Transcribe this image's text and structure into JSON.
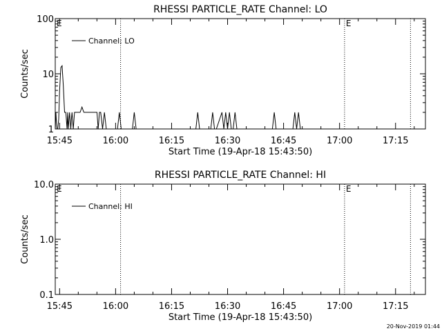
{
  "footer": {
    "timestamp": "20-Nov-2019 01:44"
  },
  "chart_data": [
    {
      "type": "line",
      "title": "RHESSI PARTICLE_RATE Channel: LO",
      "xlabel": "Start Time (19-Apr-18 15:43:50)",
      "ylabel": "Counts/sec",
      "y_scale": "log",
      "ylim": [
        1,
        100
      ],
      "y_ticks": [
        1,
        10,
        100
      ],
      "y_tick_labels": [
        "1",
        "10",
        "100"
      ],
      "xlim": [
        "15:43:50",
        "17:23:00"
      ],
      "x_ticks": [
        "15:45",
        "16:00",
        "16:15",
        "16:30",
        "16:45",
        "17:00",
        "17:15"
      ],
      "legend": {
        "position": "top-left",
        "entries": [
          "Channel: LO"
        ]
      },
      "markers": [
        {
          "time": "15:43:50",
          "label": "E",
          "line": false
        },
        {
          "time": "16:01:20",
          "label": "",
          "line": true
        },
        {
          "time": "17:01:20",
          "label": "E",
          "line": true
        },
        {
          "time": "17:19:00",
          "label": "",
          "line": true
        }
      ],
      "series": [
        {
          "name": "Channel: LO",
          "x": [
            "15:43:50",
            "15:44:00",
            "15:44:15",
            "15:44:30",
            "15:44:45",
            "15:45:00",
            "15:45:20",
            "15:45:40",
            "15:46:00",
            "15:46:20",
            "15:46:40",
            "15:47:00",
            "15:47:10",
            "15:47:20",
            "15:47:40",
            "15:48:00",
            "15:48:10",
            "15:48:20",
            "15:48:40",
            "15:49:00",
            "15:49:10",
            "15:49:20",
            "15:49:40",
            "15:50:00",
            "15:50:10",
            "15:50:30",
            "15:51:00",
            "15:51:30",
            "15:52:00",
            "15:52:20",
            "15:52:40",
            "15:53:00",
            "15:53:20",
            "15:53:40",
            "15:54:00",
            "15:54:20",
            "15:54:40",
            "15:55:00",
            "15:55:20",
            "15:55:40",
            "15:56:00",
            "15:56:30",
            "15:57:00",
            "15:57:30",
            "15:58:00",
            "15:58:30",
            "15:59:00",
            "15:59:30",
            "16:00:00",
            "16:00:30",
            "16:01:00",
            "16:01:30",
            "16:02:00",
            "16:04:00",
            "16:04:30",
            "16:05:00",
            "16:05:30",
            "16:06:00",
            "16:20:00",
            "16:21:30",
            "16:22:00",
            "16:22:30",
            "16:23:00",
            "16:25:00",
            "16:25:30",
            "16:26:00",
            "16:26:30",
            "16:27:00",
            "16:28:30",
            "16:29:00",
            "16:29:30",
            "16:30:00",
            "16:30:30",
            "16:31:00",
            "16:31:30",
            "16:32:00",
            "16:32:30",
            "16:33:00",
            "16:41:30",
            "16:42:00",
            "16:42:30",
            "16:43:00",
            "16:47:00",
            "16:47:30",
            "16:48:00",
            "16:48:30",
            "16:49:00",
            "16:49:30",
            "16:50:00",
            "17:23:00"
          ],
          "y": [
            1,
            2,
            1,
            1,
            1.5,
            5,
            13,
            14,
            6,
            2,
            2,
            1,
            2,
            1,
            2,
            1,
            1.5,
            2,
            1,
            2,
            2,
            2,
            2,
            2,
            2,
            2,
            2.5,
            2,
            2,
            2,
            2,
            2,
            2,
            2,
            2,
            2,
            2,
            2,
            1,
            2,
            2,
            1,
            2,
            1,
            1,
            1,
            1,
            1,
            1,
            1,
            2,
            1,
            1,
            1,
            1,
            2,
            1,
            1,
            1,
            1,
            2,
            1,
            1,
            1,
            1,
            2,
            1,
            1,
            2,
            1,
            2,
            1,
            2,
            1,
            1,
            2,
            1,
            1,
            1,
            1,
            2,
            1,
            1,
            1,
            2,
            1,
            2,
            1,
            1,
            1
          ]
        }
      ]
    },
    {
      "type": "line",
      "title": "RHESSI PARTICLE_RATE Channel: HI",
      "xlabel": "Start Time (19-Apr-18 15:43:50)",
      "ylabel": "Counts/sec",
      "y_scale": "log",
      "ylim": [
        0.1,
        10
      ],
      "y_ticks": [
        0.1,
        1,
        10
      ],
      "y_tick_labels": [
        "0.1",
        "1.0",
        "10.0"
      ],
      "xlim": [
        "15:43:50",
        "17:23:00"
      ],
      "x_ticks": [
        "15:45",
        "16:00",
        "16:15",
        "16:30",
        "16:45",
        "17:00",
        "17:15"
      ],
      "legend": {
        "position": "top-left",
        "entries": [
          "Channel: HI"
        ]
      },
      "markers": [
        {
          "time": "15:43:50",
          "label": "E",
          "line": false
        },
        {
          "time": "16:01:20",
          "label": "",
          "line": true
        },
        {
          "time": "17:01:20",
          "label": "E",
          "line": true
        },
        {
          "time": "17:19:00",
          "label": "",
          "line": true
        }
      ],
      "series": [
        {
          "name": "Channel: HI",
          "x": [],
          "y": []
        }
      ]
    }
  ]
}
